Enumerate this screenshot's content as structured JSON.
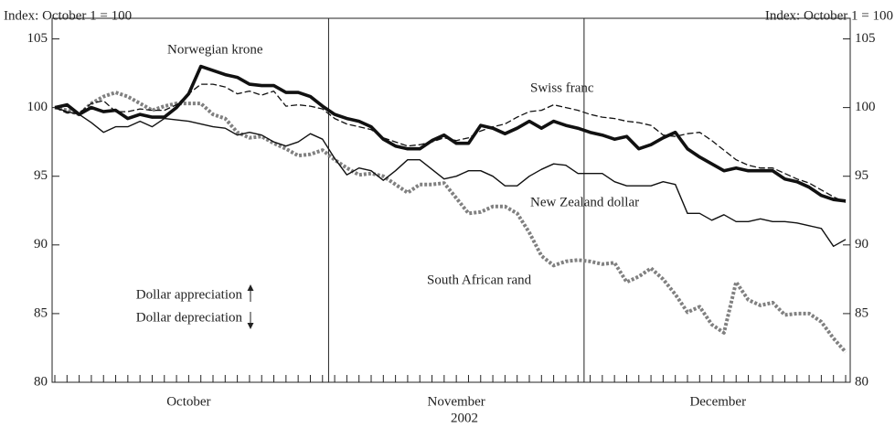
{
  "chart_data": {
    "type": "line",
    "y_label": "Index: October 1 = 100",
    "x_label": "2002",
    "annotations": [
      "Dollar appreciation",
      "Dollar depreciation"
    ],
    "categories": [
      "October",
      "October",
      "October",
      "October",
      "October",
      "October",
      "October",
      "October",
      "October",
      "October",
      "October",
      "October",
      "October",
      "October",
      "October",
      "October",
      "October",
      "October",
      "October",
      "October",
      "October",
      "October",
      "October",
      "November",
      "November",
      "November",
      "November",
      "November",
      "November",
      "November",
      "November",
      "November",
      "November",
      "November",
      "November",
      "November",
      "November",
      "November",
      "November",
      "November",
      "November",
      "November",
      "November",
      "November",
      "December",
      "December",
      "December",
      "December",
      "December",
      "December",
      "December",
      "December",
      "December",
      "December",
      "December",
      "December",
      "December",
      "December",
      "December",
      "December",
      "December",
      "December",
      "December",
      "December",
      "December",
      "December"
    ],
    "ylim": [
      80,
      106.5
    ],
    "yticks": [
      80,
      85,
      90,
      95,
      100,
      105
    ],
    "series": [
      {
        "name": "Norwegian krone",
        "color": "#111111",
        "style": "thick",
        "values": [
          100,
          100.2,
          99.5,
          100,
          99.7,
          99.8,
          99.2,
          99.5,
          99.3,
          99.3,
          100,
          101,
          103,
          102.7,
          102.4,
          102.2,
          101.7,
          101.6,
          101.6,
          101.1,
          101.1,
          100.8,
          100.1,
          99.5,
          99.2,
          99.0,
          98.6,
          97.7,
          97.2,
          97.0,
          97.0,
          97.6,
          98.0,
          97.4,
          97.4,
          98.7,
          98.5,
          98.1,
          98.5,
          99.0,
          98.5,
          99.0,
          98.7,
          98.5,
          98.2,
          98.0,
          97.7,
          97.9,
          97.0,
          97.3,
          97.8,
          98.2,
          97.0,
          96.4,
          95.9,
          95.4,
          95.6,
          95.4,
          95.4,
          95.4,
          94.8,
          94.6,
          94.2,
          93.6,
          93.3,
          93.2
        ]
      },
      {
        "name": "Swiss franc",
        "color": "#111111",
        "style": "dashed",
        "values": [
          100,
          99.6,
          99.6,
          100.3,
          100.5,
          99.7,
          99.7,
          99.9,
          99.8,
          99.8,
          100.2,
          101,
          101.7,
          101.7,
          101.5,
          101,
          101.2,
          100.9,
          101.2,
          100.1,
          100.2,
          100.1,
          99.9,
          99.2,
          98.8,
          98.6,
          98.4,
          97.8,
          97.5,
          97.2,
          97.3,
          97.5,
          97.8,
          97.6,
          97.8,
          98.3,
          98.6,
          98.8,
          99.3,
          99.7,
          99.8,
          100.2,
          100,
          99.8,
          99.5,
          99.3,
          99.2,
          99,
          98.9,
          98.7,
          98,
          97.9,
          98.1,
          98.2,
          97.6,
          96.9,
          96.2,
          95.8,
          95.6,
          95.6,
          95.2,
          94.8,
          94.5,
          94,
          93.5,
          93.1
        ]
      },
      {
        "name": "New Zealand dollar",
        "color": "#111111",
        "style": "thin",
        "values": [
          100,
          99.7,
          99.5,
          98.9,
          98.2,
          98.6,
          98.6,
          99,
          98.6,
          99.2,
          99.1,
          99,
          98.8,
          98.6,
          98.5,
          98,
          98.2,
          98,
          97.5,
          97.2,
          97.5,
          98.1,
          97.7,
          96.3,
          95.1,
          95.6,
          95.4,
          94.7,
          95.4,
          96.2,
          96.2,
          95.5,
          94.8,
          95,
          95.4,
          95.4,
          95,
          94.3,
          94.3,
          95,
          95.5,
          95.9,
          95.8,
          95.2,
          95.2,
          95.2,
          94.6,
          94.3,
          94.3,
          94.3,
          94.6,
          94.4,
          92.3,
          92.3,
          91.8,
          92.2,
          91.7,
          91.7,
          91.9,
          91.7,
          91.7,
          91.6,
          91.4,
          91.2,
          89.9,
          90.4
        ]
      },
      {
        "name": "South African rand",
        "color": "#808080",
        "style": "dotted",
        "values": [
          100,
          99.8,
          99.5,
          100.3,
          100.8,
          101.1,
          100.8,
          100.3,
          99.8,
          100.1,
          100.3,
          100.3,
          100.3,
          99.5,
          99.2,
          98.2,
          97.8,
          97.9,
          97.4,
          97,
          96.5,
          96.6,
          96.9,
          96.2,
          95.6,
          95.1,
          95.2,
          95,
          94.4,
          93.8,
          94.4,
          94.4,
          94.5,
          93.4,
          92.3,
          92.4,
          92.8,
          92.8,
          92.3,
          90.9,
          89.2,
          88.5,
          88.8,
          88.9,
          88.8,
          88.6,
          88.7,
          87.3,
          87.7,
          88.3,
          87.5,
          86.4,
          85.1,
          85.5,
          84.2,
          83.6,
          87.3,
          86,
          85.6,
          85.8,
          84.9,
          85,
          85,
          84.4,
          83.2,
          82.2
        ]
      }
    ]
  }
}
